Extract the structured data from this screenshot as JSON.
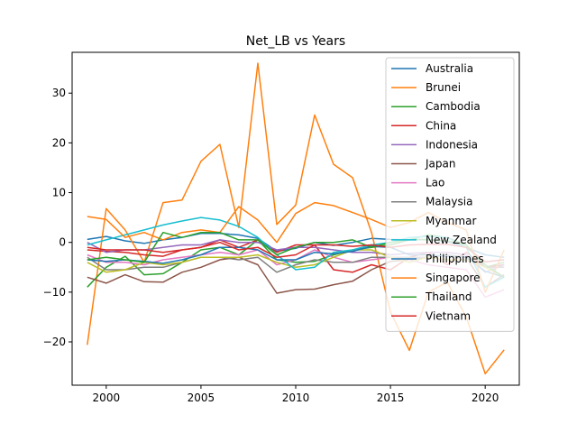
{
  "chart_data": {
    "type": "line",
    "title": "Net_LB vs Years",
    "xlabel": "",
    "ylabel": "",
    "xlim": [
      1998.2,
      2021.8
    ],
    "ylim": [
      -28.7,
      38.2
    ],
    "xticks": [
      2000,
      2005,
      2010,
      2015,
      2020
    ],
    "yticks": [
      -20,
      -10,
      0,
      10,
      20,
      30
    ],
    "grid": false,
    "legend_position": "top-right",
    "x": [
      1999,
      2000,
      2001,
      2002,
      2003,
      2004,
      2005,
      2006,
      2007,
      2008,
      2009,
      2010,
      2011,
      2012,
      2013,
      2014,
      2015,
      2016,
      2017,
      2018,
      2019,
      2020,
      2021
    ],
    "series": [
      {
        "name": "Australia",
        "color": "#1f77b4",
        "values": [
          0.6,
          1.2,
          0.3,
          -0.2,
          0.5,
          1.0,
          1.8,
          1.8,
          1.5,
          0.8,
          -1.8,
          -1.2,
          0.0,
          -0.6,
          0.0,
          0.8,
          0.6,
          0.5,
          0.6,
          0.2,
          -1.0,
          -2.5,
          -3.0
        ]
      },
      {
        "name": "Brunei",
        "color": "#ff7f0e",
        "values": [
          -20.6,
          6.8,
          2.5,
          -4.0,
          8.0,
          8.5,
          16.3,
          19.7,
          3.0,
          36.0,
          3.6,
          7.5,
          25.6,
          15.7,
          13.0,
          2.0,
          -14.0,
          -21.7,
          -10.0,
          -8.0,
          -15.0,
          -26.4,
          -21.6
        ]
      },
      {
        "name": "Cambodia",
        "color": "#2ca02c",
        "values": [
          -9.0,
          -5.0,
          -2.8,
          -6.5,
          -6.3,
          -4.0,
          -1.5,
          -1.0,
          -2.5,
          0.5,
          -3.5,
          -4.0,
          -3.8,
          -2.5,
          -1.5,
          -1.0,
          -0.5,
          0.5,
          1.5,
          1.0,
          -0.5,
          -5.0,
          -4.0
        ]
      },
      {
        "name": "China",
        "color": "#d62728",
        "values": [
          -1.5,
          -1.8,
          -2.0,
          -2.5,
          -2.8,
          -1.5,
          -1.0,
          0.5,
          -1.0,
          0.5,
          -2.0,
          -0.5,
          -0.5,
          -5.5,
          -6.0,
          -4.5,
          -5.5,
          -3.0,
          -2.0,
          -4.5,
          -2.0,
          -5.0,
          -4.5
        ]
      },
      {
        "name": "Indonesia",
        "color": "#9467bd",
        "values": [
          0.0,
          -2.0,
          -1.5,
          -1.5,
          -1.0,
          -0.5,
          -0.5,
          0.5,
          0.0,
          0.0,
          -1.5,
          -1.0,
          -1.0,
          -1.5,
          -2.0,
          -2.0,
          -2.5,
          -2.2,
          -2.0,
          -2.0,
          -2.5,
          -6.0,
          -4.5
        ]
      },
      {
        "name": "Japan",
        "color": "#8c564b",
        "values": [
          -7.0,
          -8.2,
          -6.5,
          -7.9,
          -8.0,
          -6.0,
          -5.0,
          -3.5,
          -3.0,
          -4.5,
          -10.2,
          -9.5,
          -9.4,
          -8.5,
          -7.8,
          -5.5,
          -3.8,
          -3.5,
          -3.0,
          -2.5,
          -3.0,
          -9.0,
          -6.5
        ]
      },
      {
        "name": "Lao",
        "color": "#e377c2",
        "values": [
          -2.5,
          -4.0,
          -4.0,
          -4.5,
          -3.5,
          -3.0,
          -2.5,
          -2.0,
          -2.5,
          -1.5,
          -4.5,
          -3.5,
          -1.5,
          -3.0,
          -4.0,
          -3.5,
          -3.0,
          -3.5,
          -4.5,
          -5.0,
          -5.5,
          -11.0,
          -9.5
        ]
      },
      {
        "name": "Malaysia",
        "color": "#7f7f7f",
        "values": [
          -3.0,
          -5.5,
          -5.5,
          -5.0,
          -5.0,
          -4.0,
          -3.0,
          -3.0,
          -3.5,
          -3.0,
          -6.0,
          -4.5,
          -3.5,
          -4.0,
          -4.0,
          -3.0,
          -3.0,
          -3.0,
          -3.0,
          -2.5,
          -3.0,
          -5.0,
          -5.0
        ]
      },
      {
        "name": "Myanmar",
        "color": "#bcbd22",
        "values": [
          -4.0,
          -6.0,
          -5.5,
          -4.0,
          -4.5,
          -4.0,
          -3.0,
          -3.0,
          -3.0,
          -2.5,
          -4.0,
          -5.0,
          -4.5,
          -3.0,
          -1.5,
          -1.5,
          -3.0,
          -4.0,
          -3.0,
          -3.5,
          -3.5,
          -5.0,
          -7.0
        ]
      },
      {
        "name": "New Zealand",
        "color": "#17becf",
        "values": [
          -0.5,
          0.5,
          1.5,
          2.5,
          3.5,
          4.3,
          5.0,
          4.5,
          3.2,
          1.0,
          -2.5,
          -5.5,
          -5.0,
          -2.0,
          -1.5,
          -0.5,
          0.0,
          1.0,
          1.2,
          1.0,
          -1.0,
          -9.0,
          -7.0
        ]
      },
      {
        "name": "Philippines",
        "color": "#1f77b4",
        "values": [
          -3.5,
          -3.8,
          -3.5,
          -3.8,
          -4.2,
          -3.5,
          -2.5,
          -1.0,
          -1.0,
          -1.5,
          -3.5,
          -3.5,
          -2.0,
          -2.3,
          -1.8,
          -0.8,
          -1.0,
          -2.5,
          -2.5,
          -2.8,
          -3.0,
          -5.8,
          -7.0
        ]
      },
      {
        "name": "Singapore",
        "color": "#ff7f0e",
        "values": [
          5.2,
          4.6,
          1.0,
          2.0,
          0.5,
          2.0,
          2.5,
          2.0,
          7.2,
          4.5,
          0.0,
          5.8,
          8.0,
          7.4,
          6.0,
          4.6,
          3.0,
          4.0,
          6.0,
          4.0,
          2.5,
          -10.0,
          -1.5
        ]
      },
      {
        "name": "Thailand",
        "color": "#2ca02c",
        "values": [
          -3.5,
          -3.0,
          -3.5,
          -4.0,
          2.0,
          1.0,
          2.0,
          2.0,
          0.5,
          0.5,
          -2.5,
          -1.0,
          0.0,
          0.0,
          0.5,
          -1.0,
          0.0,
          0.6,
          0.5,
          0.3,
          -0.5,
          -4.5,
          -7.0
        ]
      },
      {
        "name": "Vietnam",
        "color": "#d62728",
        "values": [
          -1.0,
          -1.5,
          -1.5,
          -1.5,
          -2.0,
          -1.5,
          -1.0,
          0.0,
          -1.5,
          -1.0,
          -3.0,
          -2.5,
          -0.5,
          -0.5,
          -0.8,
          -0.5,
          -1.0,
          -0.5,
          -0.4,
          -0.4,
          -1.0,
          -3.9,
          -3.5
        ]
      }
    ]
  }
}
